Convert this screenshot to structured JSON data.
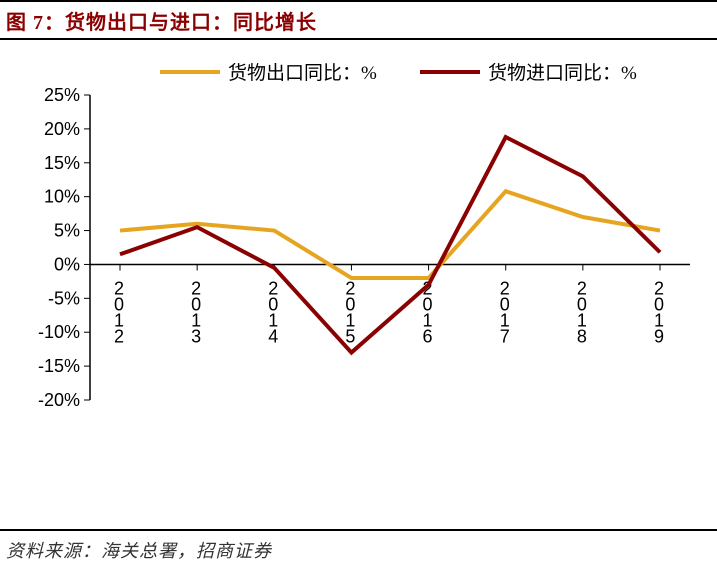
{
  "title": "图 7：货物出口与进口：同比增长",
  "source": "资料来源：海关总署，招商证券",
  "chart": {
    "type": "line",
    "background_color": "#ffffff",
    "categories": [
      "2012",
      "2013",
      "2014",
      "2015",
      "2016",
      "2017",
      "2018",
      "2019"
    ],
    "ylim": [
      -20,
      25
    ],
    "ytick_step": 5,
    "y_tick_suffix": "%",
    "series": [
      {
        "name": "货物出口同比：%",
        "color": "#e6a520",
        "values": [
          5.0,
          6.0,
          5.0,
          -2.0,
          -2.0,
          10.8,
          7.0,
          5.0
        ]
      },
      {
        "name": "货物进口同比：%",
        "color": "#8b0000",
        "values": [
          1.5,
          5.5,
          -0.5,
          -13.0,
          -3.0,
          18.8,
          13.0,
          1.8
        ]
      }
    ],
    "line_width": 4,
    "axis_color": "#000000",
    "label_fontsize": 18,
    "legend_fontsize": 19
  }
}
